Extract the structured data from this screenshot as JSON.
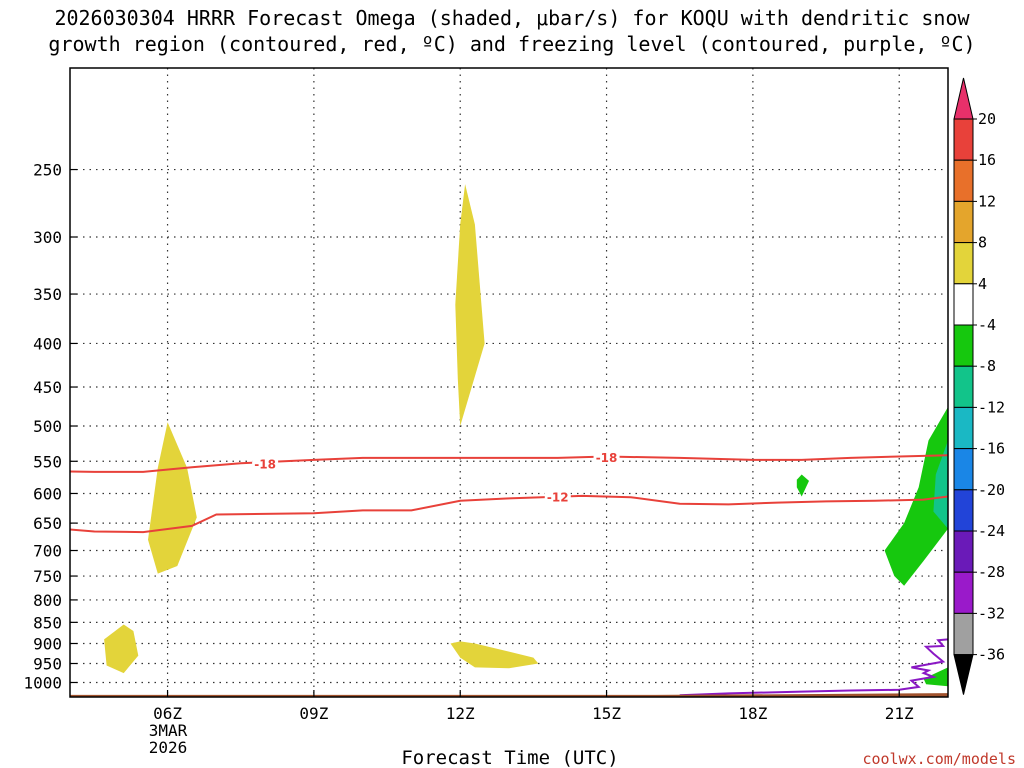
{
  "chart_data": {
    "type": "heatmap",
    "title_line1": "2026030304 HRRR Forecast Omega (shaded, μbar/s) for KOQU with dendritic snow",
    "title_line2": "growth region (contoured, red, ºC) and freezing level (contoured, purple, ºC)",
    "xlabel": "Forecast Time (UTC)",
    "date_label": [
      "3MAR",
      "2026"
    ],
    "credit": "coolwx.com/models",
    "x_axis": {
      "unit": "hours since 04Z",
      "range": [
        0,
        18
      ],
      "ticks": [
        {
          "value": 2,
          "label": "06Z"
        },
        {
          "value": 5,
          "label": "09Z"
        },
        {
          "value": 8,
          "label": "12Z"
        },
        {
          "value": 11,
          "label": "15Z"
        },
        {
          "value": 14,
          "label": "18Z"
        },
        {
          "value": 17,
          "label": "21Z"
        }
      ]
    },
    "y_axis": {
      "unit": "hPa",
      "range": [
        1040,
        190
      ],
      "ticks": [
        250,
        300,
        350,
        400,
        450,
        500,
        550,
        600,
        650,
        700,
        750,
        800,
        850,
        900,
        950,
        1000
      ]
    },
    "colorbar": {
      "labels": [
        "20",
        "16",
        "12",
        "8",
        "4",
        "-4",
        "-8",
        "-12",
        "-16",
        "-20",
        "-24",
        "-28",
        "-32",
        "-36"
      ],
      "colors": [
        "#e8306a",
        "#e8413a",
        "#e8702a",
        "#e4a52c",
        "#e3d43a",
        "#ffffff",
        "#16c80e",
        "#12c48a",
        "#1ab8c4",
        "#1a86e6",
        "#2244d8",
        "#6a1ab8",
        "#9a1aca",
        "#a0a0a0"
      ]
    },
    "shaded_regions": [
      {
        "name": "omega-positive-300-450mb-12Z",
        "color": "#e3d43a",
        "points": [
          [
            8,
            290
          ],
          [
            7.9,
            360
          ],
          [
            7.95,
            440
          ],
          [
            8,
            500
          ],
          [
            8.5,
            400
          ],
          [
            8.3,
            290
          ],
          [
            8.1,
            260
          ]
        ]
      },
      {
        "name": "omega-positive-500-750mb-06Z",
        "color": "#e3d43a",
        "points": [
          [
            2,
            495
          ],
          [
            1.8,
            560
          ],
          [
            1.6,
            680
          ],
          [
            1.8,
            745
          ],
          [
            2.2,
            730
          ],
          [
            2.6,
            640
          ],
          [
            2.4,
            560
          ]
        ]
      },
      {
        "name": "omega-positive-900mb-05Z",
        "color": "#e3d43a",
        "points": [
          [
            0.7,
            890
          ],
          [
            0.75,
            955
          ],
          [
            1.1,
            975
          ],
          [
            1.4,
            930
          ],
          [
            1.3,
            870
          ],
          [
            1.1,
            855
          ]
        ]
      },
      {
        "name": "omega-positive-900-950mb-12Z",
        "color": "#e3d43a",
        "points": [
          [
            7.8,
            900
          ],
          [
            8,
            935
          ],
          [
            8.3,
            960
          ],
          [
            9,
            962
          ],
          [
            9.6,
            950
          ],
          [
            9.5,
            935
          ],
          [
            9,
            920
          ],
          [
            8.3,
            900
          ],
          [
            8,
            895
          ]
        ]
      },
      {
        "name": "omega-negative-600mb-19Z",
        "color": "#16c80e",
        "points": [
          [
            14.9,
            578
          ],
          [
            15,
            570
          ],
          [
            15.15,
            580
          ],
          [
            15,
            605
          ],
          [
            14.9,
            590
          ]
        ]
      },
      {
        "name": "omega-negative-500-750mb-21Z",
        "color": "#16c80e",
        "points": [
          [
            18,
            475
          ],
          [
            17.6,
            520
          ],
          [
            17.4,
            590
          ],
          [
            17.1,
            650
          ],
          [
            16.7,
            700
          ],
          [
            16.9,
            750
          ],
          [
            17.1,
            770
          ],
          [
            17.5,
            720
          ],
          [
            18,
            660
          ]
        ]
      },
      {
        "name": "omega-strong-negative-550-650mb-22Z",
        "color": "#12c48a",
        "points": [
          [
            18,
            520
          ],
          [
            17.75,
            570
          ],
          [
            17.7,
            630
          ],
          [
            18,
            660
          ]
        ]
      },
      {
        "name": "omega-negative-1000mb-22Z",
        "color": "#16c80e",
        "points": [
          [
            18,
            960
          ],
          [
            17.5,
            990
          ],
          [
            17.55,
            1005
          ],
          [
            18,
            1010
          ]
        ]
      }
    ],
    "contours": [
      {
        "name": "dgz-minus18-contour",
        "color": "#e8413a",
        "label": "-18",
        "label_points": [
          [
            4,
            553
          ],
          [
            11,
            544
          ]
        ],
        "points": [
          [
            -0.5,
            565
          ],
          [
            0.5,
            566
          ],
          [
            1.5,
            566
          ],
          [
            2.5,
            559
          ],
          [
            3.5,
            553
          ],
          [
            5,
            548
          ],
          [
            6,
            545
          ],
          [
            8,
            545
          ],
          [
            10,
            545
          ],
          [
            11,
            543
          ],
          [
            12.5,
            545
          ],
          [
            14,
            548
          ],
          [
            15,
            548
          ],
          [
            16,
            545
          ],
          [
            17,
            543
          ],
          [
            18,
            541
          ]
        ]
      },
      {
        "name": "dgz-minus12-contour",
        "color": "#e8413a",
        "label": "-12",
        "label_points": [
          [
            10,
            605
          ]
        ],
        "points": [
          [
            -0.5,
            658
          ],
          [
            0.5,
            665
          ],
          [
            1.5,
            666
          ],
          [
            2.5,
            655
          ],
          [
            3,
            635
          ],
          [
            5,
            633
          ],
          [
            6,
            628
          ],
          [
            7,
            628
          ],
          [
            8,
            612
          ],
          [
            9,
            608
          ],
          [
            10.5,
            604
          ],
          [
            11.5,
            606
          ],
          [
            12.5,
            617
          ],
          [
            13.5,
            618
          ],
          [
            14.5,
            615
          ],
          [
            15.5,
            613
          ],
          [
            16.5,
            612
          ],
          [
            17.5,
            610
          ],
          [
            18,
            605
          ]
        ]
      },
      {
        "name": "freezing-level-contour",
        "color": "#8a18c4",
        "points": [
          [
            12.5,
            1035
          ],
          [
            13.5,
            1030
          ],
          [
            15,
            1025
          ],
          [
            16,
            1022
          ],
          [
            17,
            1020
          ],
          [
            17.4,
            1012
          ],
          [
            17.25,
            995
          ],
          [
            17.7,
            985
          ],
          [
            17.5,
            975
          ],
          [
            17.6,
            968
          ],
          [
            17.25,
            960
          ],
          [
            17.9,
            945
          ],
          [
            17.7,
            925
          ],
          [
            17.55,
            908
          ],
          [
            17.9,
            906
          ],
          [
            17.8,
            892
          ],
          [
            18,
            890
          ]
        ]
      }
    ],
    "terrain": {
      "name": "surface-terrain",
      "color": "#a0522d",
      "surface_hpa": [
        [
          0,
          1034
        ],
        [
          12,
          1034
        ],
        [
          15,
          1032
        ],
        [
          18,
          1029
        ]
      ]
    }
  }
}
